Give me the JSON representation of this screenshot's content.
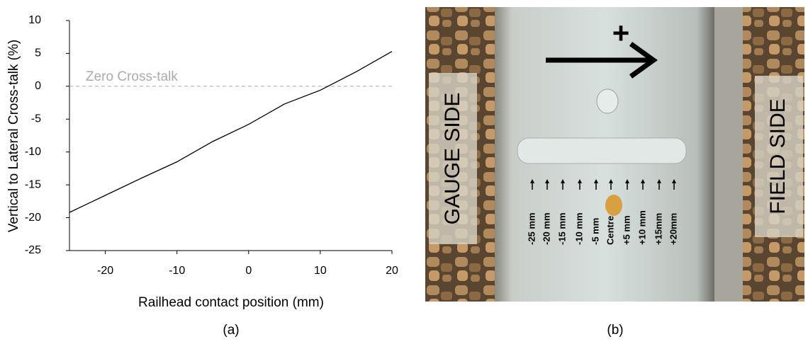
{
  "chart_data": {
    "type": "line",
    "ylabel": "Vertical to Lateral Cross-talk (%)",
    "xlabel": "Railhead contact position (mm)",
    "annotation": "Zero Cross-talk",
    "reference_line": 0,
    "x": [
      -25,
      -20,
      -15,
      -10,
      -5,
      0,
      5,
      10,
      15,
      20
    ],
    "series": [
      {
        "color": "#000000",
        "values": [
          -19.2,
          -16.6,
          -14,
          -11.5,
          -8.4,
          -5.8,
          -2.7,
          -0.6,
          2.2,
          5.3
        ]
      }
    ],
    "xlim": [
      -25,
      20
    ],
    "xticks": [
      -20,
      -10,
      0,
      10,
      20
    ],
    "ylim": [
      -25,
      10
    ],
    "yticks": [
      -25,
      -20,
      -15,
      -10,
      -5,
      0,
      5,
      10
    ]
  },
  "captions": [
    "(a)",
    "(b)"
  ],
  "photo": {
    "direction": "+",
    "left_label": "GAUGE SIDE",
    "right_label": "FIELD SIDE",
    "position_labels": [
      "-25 mm",
      "-20 mm",
      "-15 mm",
      "-10 mm",
      "-5 mm",
      "Centre",
      "+5 mm",
      "+10 mm",
      "+15mm",
      "+20mm"
    ]
  }
}
